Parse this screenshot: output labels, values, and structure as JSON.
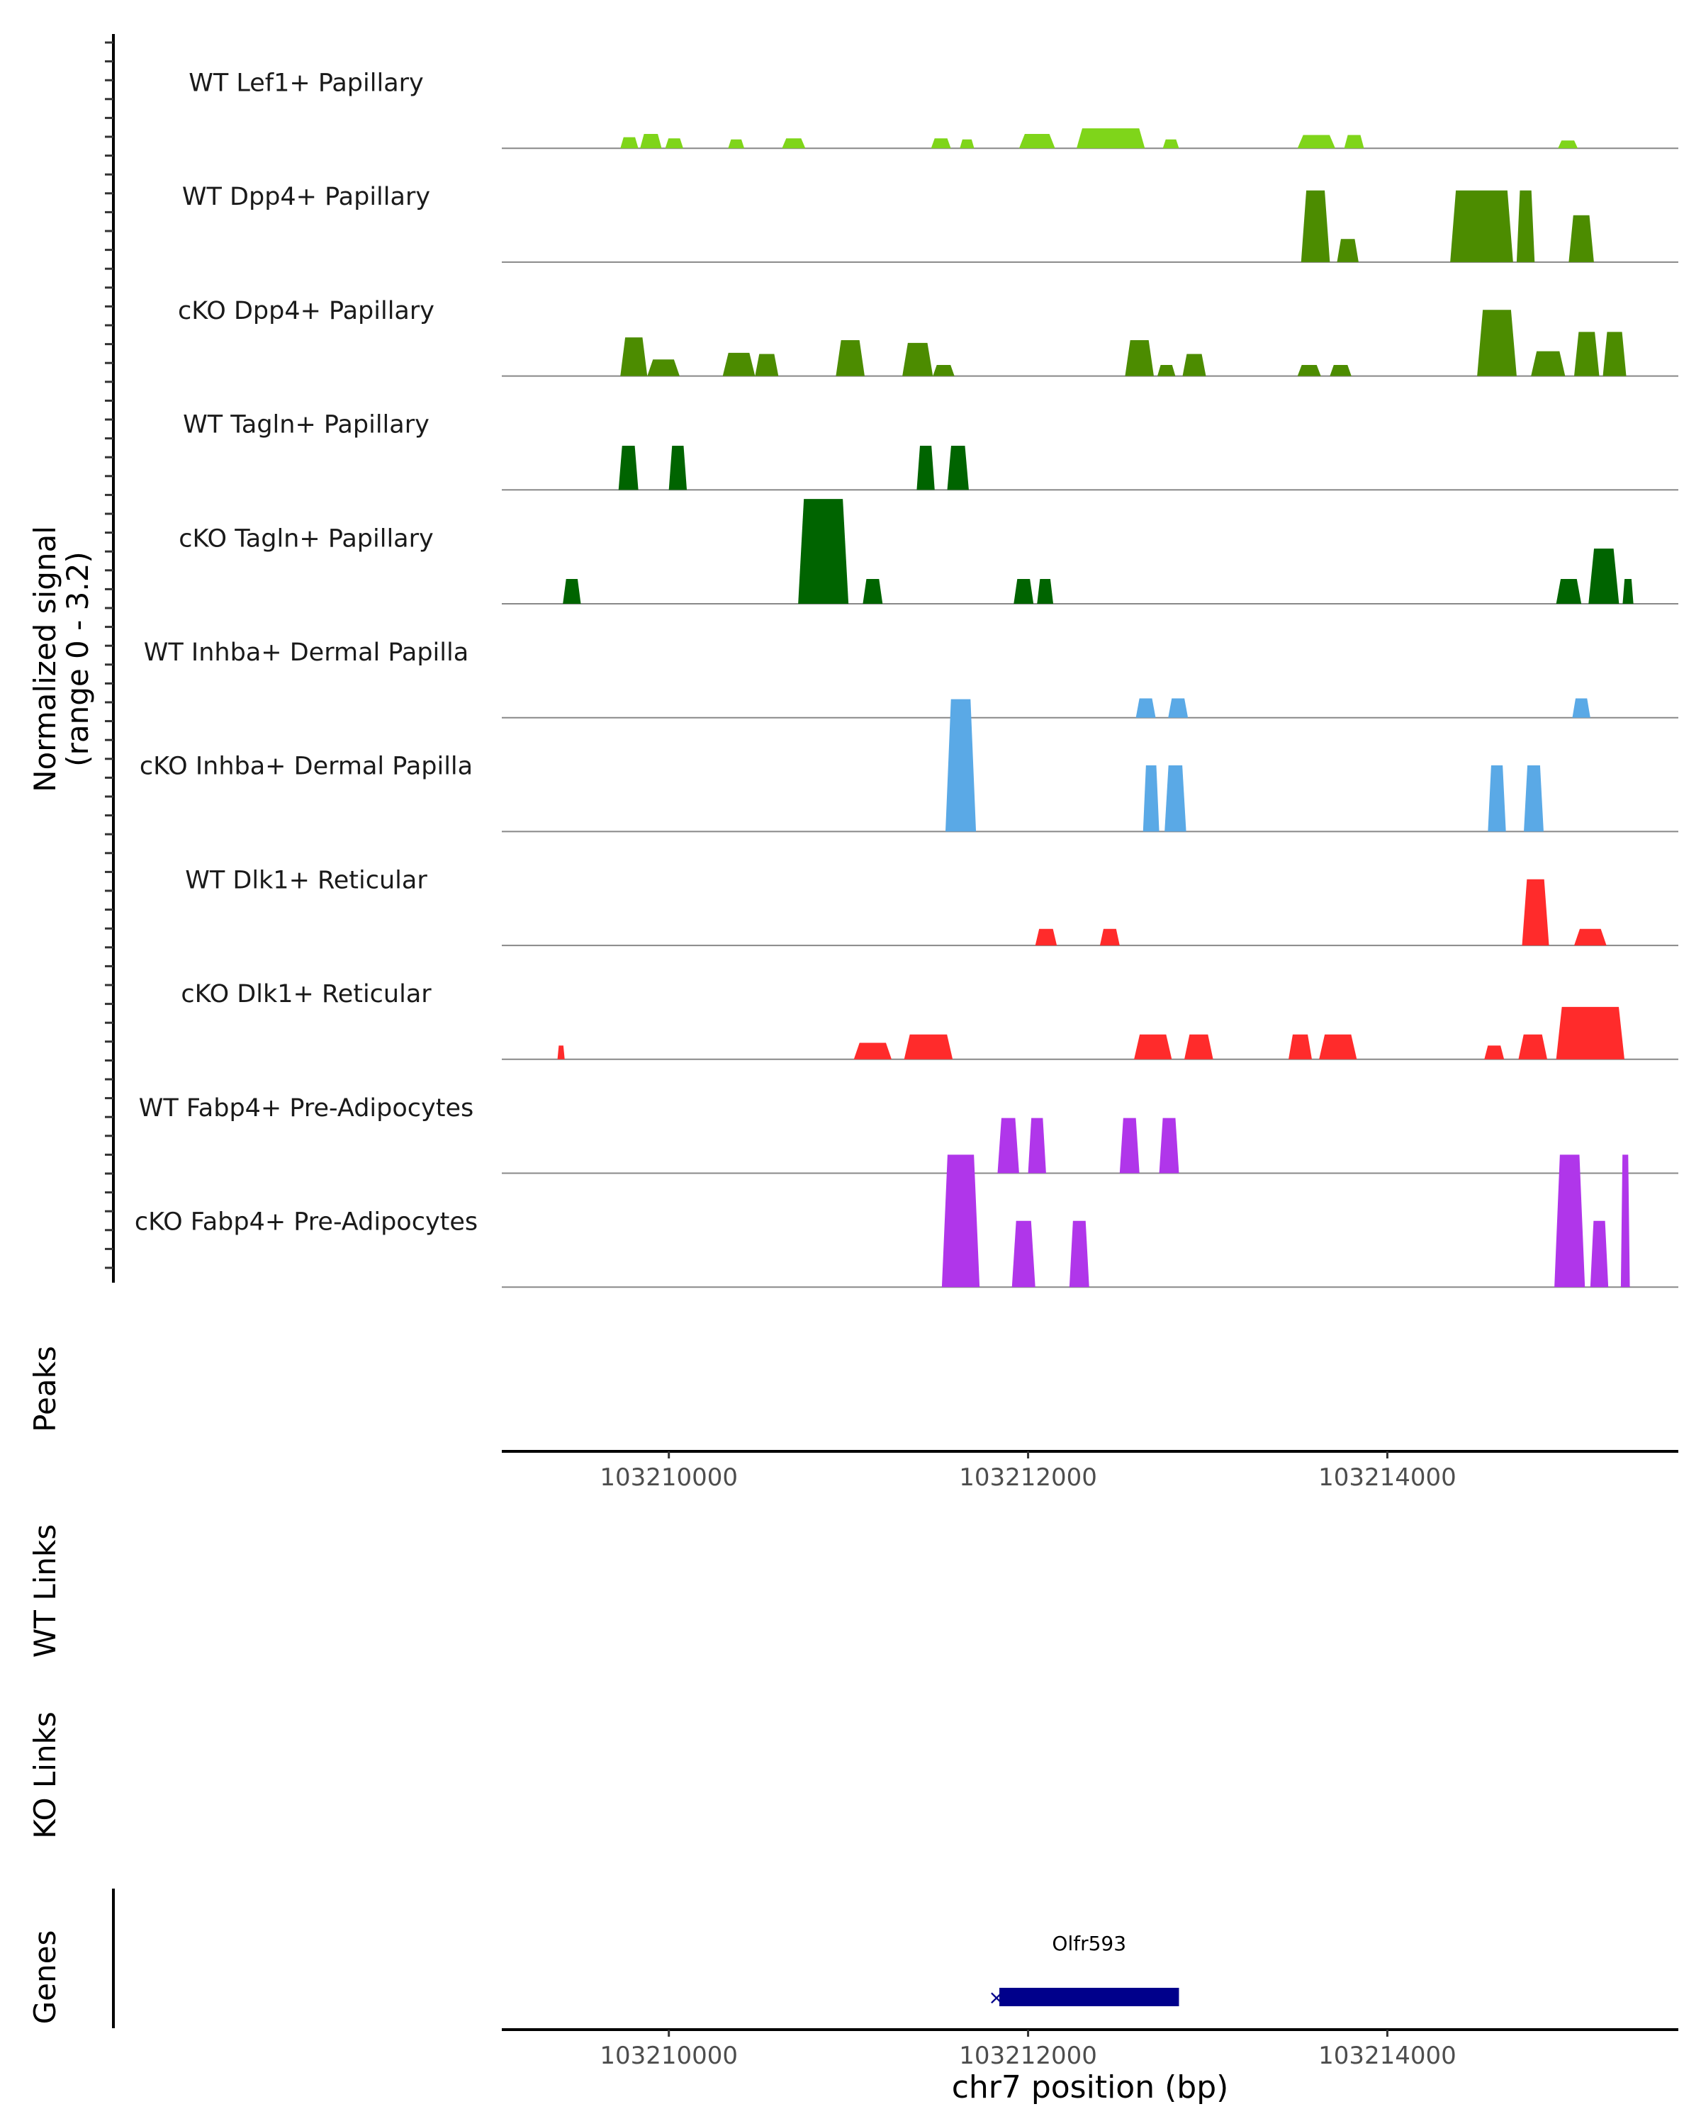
{
  "colors": {
    "lef1": "#7fd51a",
    "dpp4": "#4c8c00",
    "tagln": "#006400",
    "inhba": "#5aa9e6",
    "dlk1": "#ff2b2b",
    "fabp4": "#b036ea",
    "gene": "#00008b",
    "baseline": "#888888",
    "axis": "#000000",
    "tick_label": "#4d4d4d"
  },
  "labels": {
    "signal_axis_line1": "Normalized signal",
    "signal_axis_line2": "(range 0 - 3.2)",
    "peaks": "Peaks",
    "wt_links": "WT Links",
    "ko_links": "KO Links",
    "genes": "Genes",
    "x_axis_title": "chr7 position (bp)"
  },
  "gene": {
    "name": "Olfr593",
    "start": 103211840,
    "end": 103212840
  },
  "chart_data": {
    "type": "area",
    "title": "",
    "xlabel": "chr7 position (bp)",
    "ylabel": "Normalized signal (range 0 - 3.2)",
    "xlim": [
      103209070,
      103215620
    ],
    "ylim": [
      0,
      3.2
    ],
    "x_ticks": [
      103210000,
      103212000,
      103214000
    ],
    "x_tick_labels": [
      "103210000",
      "103212000",
      "103214000"
    ],
    "series": [
      {
        "name": "WT Lef1+ Papillary",
        "color_key": "lef1",
        "peaks": [
          [
            103209730,
            103209830,
            0.2
          ],
          [
            103209840,
            103209960,
            0.26
          ],
          [
            103209980,
            103210080,
            0.18
          ],
          [
            103210330,
            103210420,
            0.16
          ],
          [
            103210630,
            103210760,
            0.18
          ],
          [
            103211460,
            103211570,
            0.18
          ],
          [
            103211620,
            103211700,
            0.16
          ],
          [
            103211950,
            103212150,
            0.26
          ],
          [
            103212270,
            103212650,
            0.36
          ],
          [
            103212750,
            103212840,
            0.16
          ],
          [
            103213500,
            103213710,
            0.24
          ],
          [
            103213760,
            103213870,
            0.24
          ],
          [
            103214950,
            103215060,
            0.14
          ]
        ]
      },
      {
        "name": "WT Dpp4+ Papillary",
        "color_key": "dpp4",
        "peaks": [
          [
            103213520,
            103213680,
            1.3
          ],
          [
            103213720,
            103213840,
            0.42
          ],
          [
            103214350,
            103214700,
            1.3
          ],
          [
            103214520,
            103214620,
            1.2
          ],
          [
            103214720,
            103214820,
            1.3
          ],
          [
            103215010,
            103215150,
            0.85
          ]
        ]
      },
      {
        "name": "cKO Dpp4+ Papillary",
        "color_key": "dpp4",
        "peaks": [
          [
            103209730,
            103209880,
            0.7
          ],
          [
            103209880,
            103210060,
            0.3
          ],
          [
            103210300,
            103210480,
            0.42
          ],
          [
            103210480,
            103210610,
            0.4
          ],
          [
            103210930,
            103211090,
            0.65
          ],
          [
            103211300,
            103211470,
            0.6
          ],
          [
            103211470,
            103211590,
            0.2
          ],
          [
            103212540,
            103212700,
            0.65
          ],
          [
            103212720,
            103212820,
            0.2
          ],
          [
            103212860,
            103212990,
            0.4
          ],
          [
            103213500,
            103213630,
            0.2
          ],
          [
            103213680,
            103213800,
            0.2
          ],
          [
            103214500,
            103214720,
            1.2
          ],
          [
            103214800,
            103214990,
            0.45
          ],
          [
            103215040,
            103215180,
            0.8
          ],
          [
            103215200,
            103215330,
            0.8
          ]
        ]
      },
      {
        "name": "WT Tagln+ Papillary",
        "color_key": "tagln",
        "peaks": [
          [
            103209720,
            103209830,
            0.8
          ],
          [
            103210000,
            103210100,
            0.8
          ],
          [
            103211380,
            103211480,
            0.8
          ],
          [
            103211550,
            103211670,
            0.8
          ]
        ]
      },
      {
        "name": "cKO Tagln+ Papillary",
        "color_key": "tagln",
        "peaks": [
          [
            103209410,
            103209510,
            0.45
          ],
          [
            103210720,
            103211000,
            1.9
          ],
          [
            103211080,
            103211190,
            0.45
          ],
          [
            103211920,
            103212030,
            0.45
          ],
          [
            103212050,
            103212140,
            0.45
          ],
          [
            103214940,
            103215080,
            0.45
          ],
          [
            103215120,
            103215290,
            1.0
          ],
          [
            103215310,
            103215370,
            0.45
          ]
        ]
      },
      {
        "name": "WT Inhba+ Dermal Papilla",
        "color_key": "inhba",
        "peaks": [
          [
            103212600,
            103212710,
            0.35
          ],
          [
            103212780,
            103212890,
            0.35
          ],
          [
            103215030,
            103215130,
            0.35
          ]
        ]
      },
      {
        "name": "cKO Inhba+ Dermal Papilla",
        "color_key": "inhba",
        "peaks": [
          [
            103211540,
            103211710,
            2.4
          ],
          [
            103212640,
            103212730,
            1.2
          ],
          [
            103212760,
            103212880,
            1.2
          ],
          [
            103214560,
            103214660,
            1.2
          ],
          [
            103214760,
            103214870,
            1.2
          ]
        ]
      },
      {
        "name": "WT Dlk1+ Reticular",
        "color_key": "dlk1",
        "peaks": [
          [
            103212040,
            103212160,
            0.3
          ],
          [
            103212400,
            103212510,
            0.3
          ],
          [
            103214750,
            103214900,
            1.2
          ],
          [
            103215040,
            103215220,
            0.3
          ]
        ]
      },
      {
        "name": "cKO Dlk1+ Reticular",
        "color_key": "dlk1",
        "peaks": [
          [
            103209380,
            103209420,
            0.25
          ],
          [
            103211030,
            103211240,
            0.3
          ],
          [
            103211310,
            103211580,
            0.45
          ],
          [
            103212590,
            103212800,
            0.45
          ],
          [
            103212870,
            103213030,
            0.45
          ],
          [
            103213450,
            103213580,
            0.45
          ],
          [
            103213620,
            103213830,
            0.45
          ],
          [
            103214540,
            103214650,
            0.25
          ],
          [
            103214730,
            103214890,
            0.45
          ],
          [
            103214940,
            103215320,
            0.95
          ]
        ]
      },
      {
        "name": "WT Fabp4+ Pre-Adipocytes",
        "color_key": "fabp4",
        "peaks": [
          [
            103211830,
            103211950,
            1.0
          ],
          [
            103212000,
            103212100,
            1.0
          ],
          [
            103212510,
            103212620,
            1.0
          ],
          [
            103212730,
            103212840,
            1.0
          ]
        ]
      },
      {
        "name": "cKO Fabp4+ Pre-Adipocytes",
        "color_key": "fabp4",
        "peaks": [
          [
            103211520,
            103211730,
            2.4
          ],
          [
            103211910,
            103212040,
            1.2
          ],
          [
            103212230,
            103212340,
            1.2
          ],
          [
            103214930,
            103215100,
            2.4
          ],
          [
            103215130,
            103215230,
            1.2
          ],
          [
            103215300,
            103215350,
            2.4
          ]
        ]
      }
    ]
  }
}
